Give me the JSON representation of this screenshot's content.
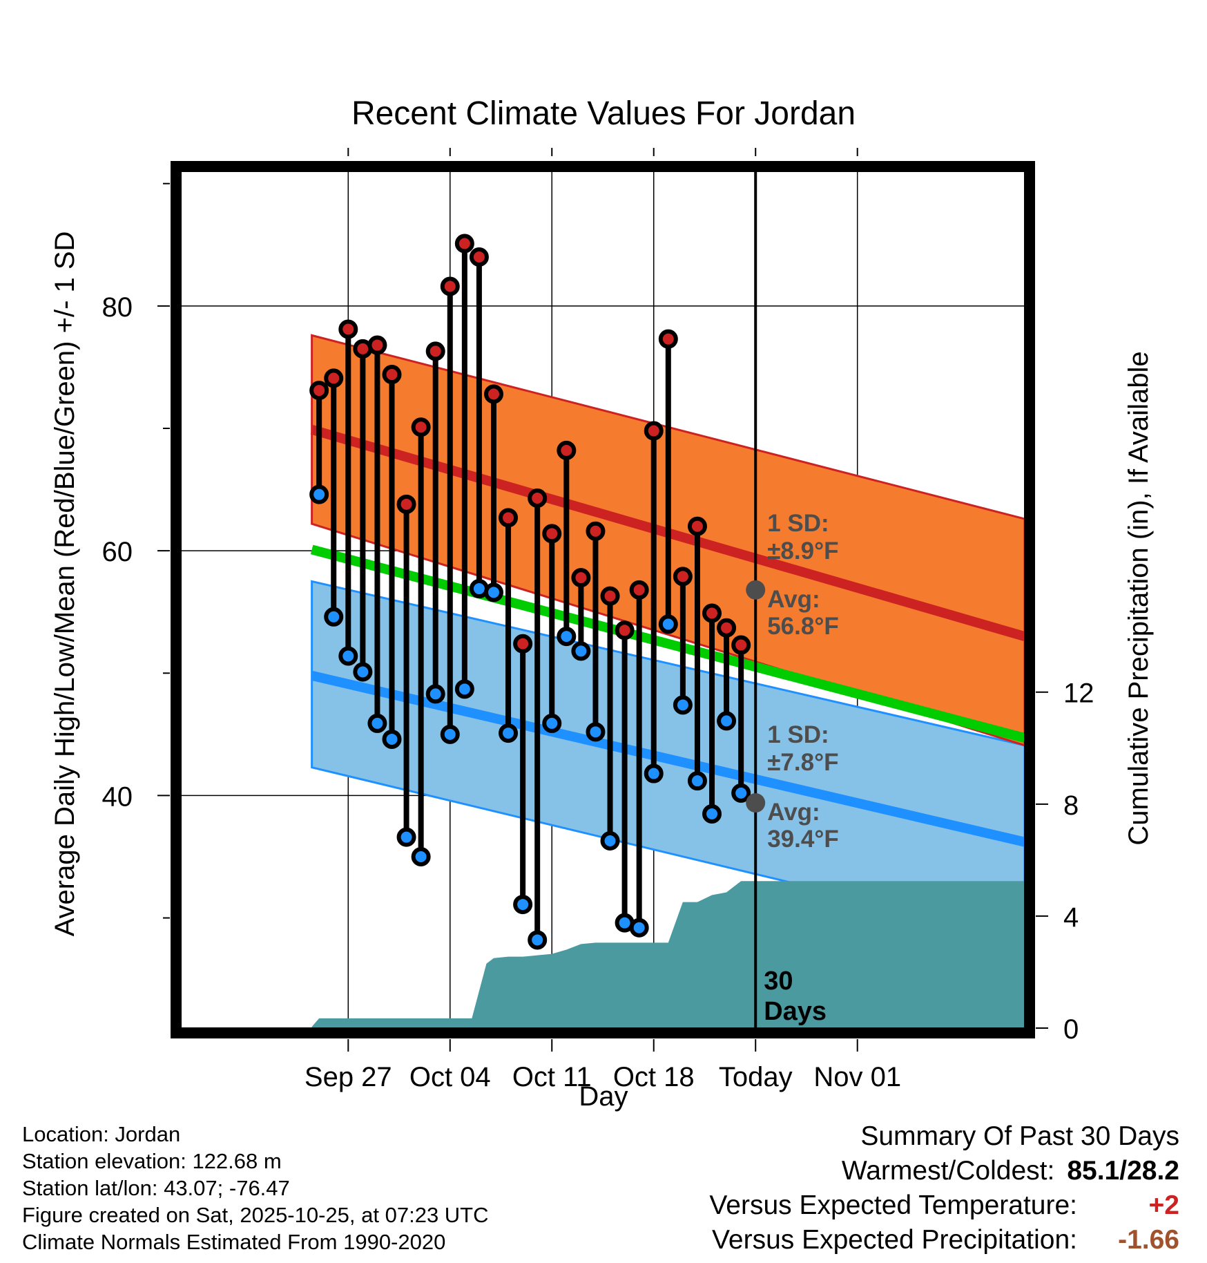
{
  "colors": {
    "high": "#cc2222",
    "low": "#1e90ff",
    "high_band": "#f57c2e",
    "low_band": "#86c2e8",
    "mean": "#00cc00",
    "precip": "#4a9aa0",
    "temp_anomaly": "#cc2222",
    "precip_anomaly": "#a0522d",
    "marker_gray": "#4d4d4d"
  },
  "chart_data": {
    "type": "line",
    "title": "Recent Climate Values For Jordan",
    "xlabel": "Day",
    "ylabel": "Average Daily High/Low/Mean (Red/Blue/Green) +/- 1 SD",
    "y2label": "Cumulative Precipitation (in), If Available",
    "ylim": [
      21,
      91
    ],
    "y2lim": [
      0,
      30.6
    ],
    "xlim": [
      -4.5,
      53.5
    ],
    "grid": true,
    "x_ticks": [
      {
        "day": 7,
        "label": "Sep 27"
      },
      {
        "day": 14,
        "label": "Oct 04"
      },
      {
        "day": 21,
        "label": "Oct 11"
      },
      {
        "day": 28,
        "label": "Oct 18"
      },
      {
        "day": 35,
        "label": "Today"
      },
      {
        "day": 42,
        "label": "Nov 01"
      }
    ],
    "y_ticks": [
      40,
      60,
      80
    ],
    "y_minor_ticks": [
      30,
      50,
      70,
      90
    ],
    "y2_ticks": [
      0,
      4,
      8,
      12
    ],
    "today_day": 35,
    "days_observed": [
      5,
      6,
      7,
      8,
      9,
      10,
      11,
      12,
      13,
      14,
      15,
      16,
      17,
      18,
      19,
      20,
      21,
      22,
      23,
      24,
      25,
      26,
      27,
      28,
      29,
      30,
      31,
      32,
      33,
      34
    ],
    "series": [
      {
        "name": "Daily High",
        "values": [
          73.1,
          74.1,
          78.1,
          76.5,
          76.8,
          74.4,
          63.8,
          70.1,
          76.3,
          81.6,
          85.1,
          84.0,
          72.8,
          62.7,
          52.4,
          64.3,
          61.4,
          68.2,
          57.8,
          61.6,
          56.3,
          53.5,
          56.8,
          69.8,
          77.3,
          57.9,
          62.0,
          54.9,
          53.7,
          52.3
        ]
      },
      {
        "name": "Daily Low",
        "values": [
          64.6,
          54.6,
          51.4,
          50.1,
          45.9,
          44.6,
          36.6,
          35.0,
          48.3,
          45.0,
          48.7,
          56.9,
          56.6,
          45.1,
          31.1,
          28.2,
          45.9,
          53.0,
          51.8,
          45.2,
          36.3,
          29.6,
          29.2,
          41.8,
          54.0,
          47.4,
          41.2,
          38.5,
          46.1,
          40.2
        ]
      }
    ],
    "normals": {
      "days": [
        4.5,
        53.5
      ],
      "high_avg": [
        69.9,
        53.0
      ],
      "high_sd_upper": [
        77.6,
        62.6
      ],
      "high_sd_lower": [
        62.2,
        44.1
      ],
      "mean": [
        60.1,
        44.7
      ],
      "low_avg": [
        49.8,
        36.2
      ],
      "low_sd_upper": [
        57.5,
        44.1
      ],
      "low_sd_lower": [
        42.3,
        28.3
      ]
    },
    "cumulative_precip": {
      "days": [
        4.5,
        5,
        15.5,
        16.5,
        17,
        18,
        19,
        20,
        21,
        22,
        23,
        24,
        25,
        26,
        27,
        28,
        29,
        30,
        31,
        32,
        33,
        34,
        53.5
      ],
      "values": [
        0.05,
        0.35,
        0.35,
        2.3,
        2.5,
        2.55,
        2.55,
        2.6,
        2.65,
        2.8,
        3.0,
        3.05,
        3.05,
        3.05,
        3.05,
        3.05,
        3.05,
        4.5,
        4.5,
        4.75,
        4.85,
        5.25,
        5.25
      ]
    },
    "annotations": {
      "high_avg_value": 56.8,
      "low_avg_value": 39.4,
      "high_sd_label": "1 SD:",
      "high_sd_value": "±8.9°F",
      "high_avg_label": "Avg:",
      "high_avg_text": "56.8°F",
      "low_sd_label": "1 SD:",
      "low_sd_value": "±7.8°F",
      "low_avg_label": "Avg:",
      "low_avg_text": "39.4°F",
      "days_line1": "30",
      "days_line2": "Days"
    }
  },
  "info": {
    "location": "Location: Jordan",
    "elevation": "Station elevation: 122.68 m",
    "latlon": "Station lat/lon: 43.07; -76.47",
    "created": "Figure created on Sat, 2025-10-25, at 07:23 UTC",
    "normals": "Climate Normals Estimated From 1990-2020"
  },
  "summary": {
    "title": "Summary Of Past 30 Days",
    "warm_cold_label": "Warmest/Coldest:",
    "warm_cold_value": "85.1/28.2",
    "temp_label": "Versus Expected Temperature:",
    "temp_value": "+2",
    "precip_label": "Versus Expected Precipitation:",
    "precip_value": "-1.66"
  }
}
